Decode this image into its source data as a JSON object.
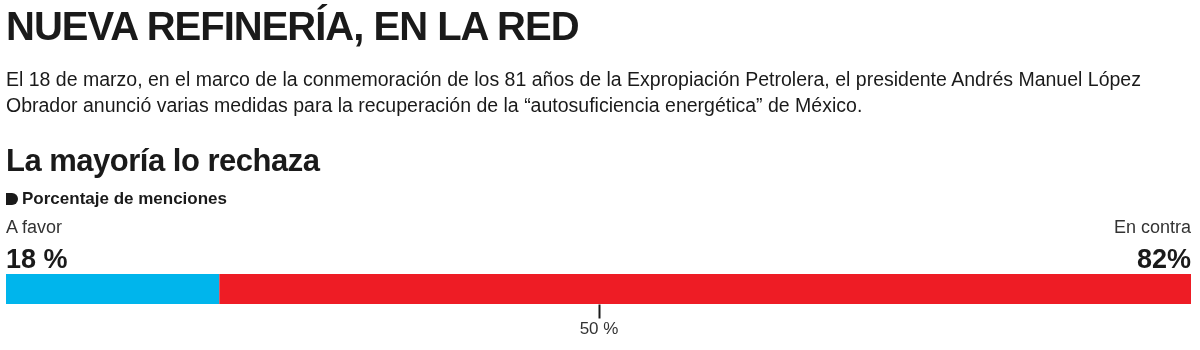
{
  "chart_data": {
    "type": "bar",
    "orientation": "horizontal",
    "stacked": true,
    "title": "NUEVA REFINERÍA, EN LA RED",
    "subtitle": "El 18 de marzo, en el marco de la conmemoración de los 81 años de la Expropiación Petrolera, el presidente Andrés Manuel López Obrador anunció varias medidas para la recuperación de la “autosuficiencia energética” de México.",
    "annotations": [
      "La mayoría lo rechaza",
      "Porcentaje de menciones"
    ],
    "categories": [
      null
    ],
    "series": [
      {
        "name": "A favor",
        "color": "#00b5ec",
        "values": [
          18
        ],
        "value_labels": [
          "18 %"
        ]
      },
      {
        "name": "En contra",
        "color": "#ee1c25",
        "values": [
          82
        ],
        "value_labels": [
          "82%"
        ]
      }
    ],
    "xlim": [
      0,
      100
    ],
    "xticks": [
      {
        "value": 50,
        "label": "50 %"
      }
    ],
    "grid": false
  }
}
